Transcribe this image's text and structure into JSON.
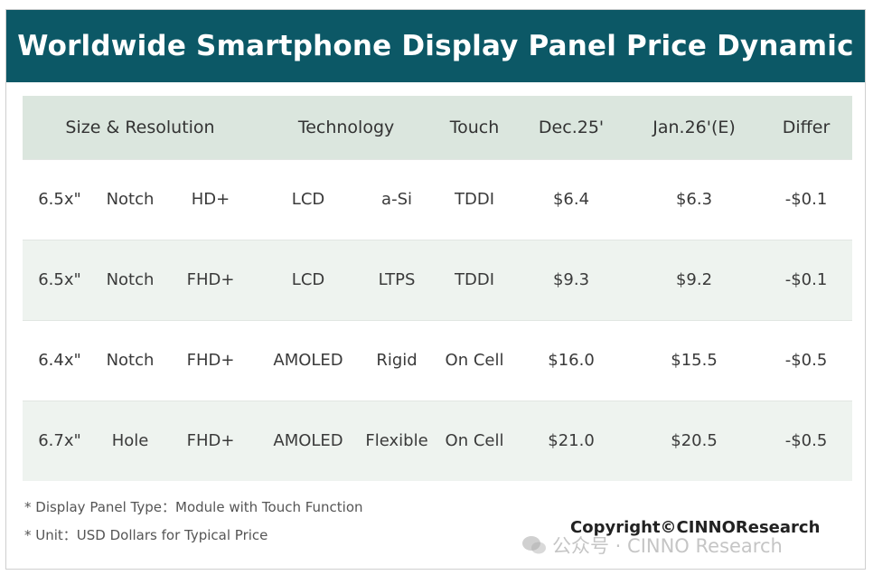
{
  "title": "Worldwide Smartphone Display Panel Price Dynamic",
  "chart_data": {
    "type": "table",
    "title": "Worldwide Smartphone Display Panel Price Dynamic",
    "columns": [
      "Size & Resolution",
      "Technology",
      "Touch",
      "Dec.25'",
      "Jan.26'(E)",
      "Differ"
    ],
    "rows": [
      {
        "size": "6.5x\"",
        "shape": "Notch",
        "resolution": "HD+",
        "tech": "LCD",
        "substrate": "a-Si",
        "touch": "TDDI",
        "dec": "$6.4",
        "jan": "$6.3",
        "differ": "-$0.1"
      },
      {
        "size": "6.5x\"",
        "shape": "Notch",
        "resolution": "FHD+",
        "tech": "LCD",
        "substrate": "LTPS",
        "touch": "TDDI",
        "dec": "$9.3",
        "jan": "$9.2",
        "differ": "-$0.1"
      },
      {
        "size": "6.4x\"",
        "shape": "Notch",
        "resolution": "FHD+",
        "tech": "AMOLED",
        "substrate": "Rigid",
        "touch": "On Cell",
        "dec": "$16.0",
        "jan": "$15.5",
        "differ": "-$0.5"
      },
      {
        "size": "6.7x\"",
        "shape": "Hole",
        "resolution": "FHD+",
        "tech": "AMOLED",
        "substrate": "Flexible",
        "touch": "On Cell",
        "dec": "$21.0",
        "jan": "$20.5",
        "differ": "-$0.5"
      }
    ]
  },
  "notes": [
    "* Display Panel Type：Module with Touch Function",
    "* Unit：USD Dollars for Typical Price"
  ],
  "copyright": "Copyright©CINNOResearch",
  "watermark": "公众号 · CINNO Research",
  "colors": {
    "title_bg": "#0c5866",
    "header_bg": "#dbe6de",
    "alt_row_bg": "#eef3ef"
  }
}
